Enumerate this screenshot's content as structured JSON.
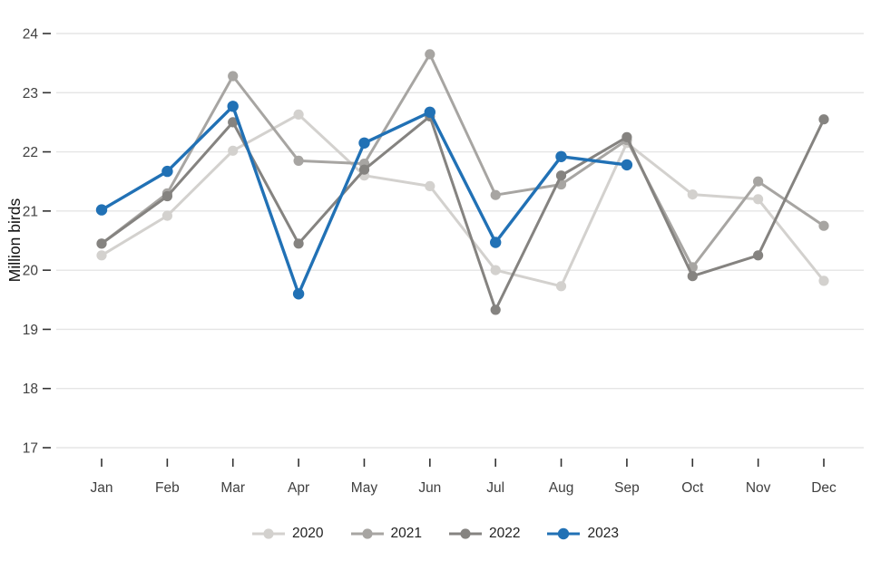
{
  "chart_data": {
    "type": "line",
    "title": "",
    "xlabel": "",
    "ylabel": "Million birds",
    "ylim": [
      17,
      24
    ],
    "yticks": [
      17,
      18,
      19,
      20,
      21,
      22,
      23,
      24
    ],
    "grid": "horizontal",
    "legend_position": "bottom",
    "categories": [
      "Jan",
      "Feb",
      "Mar",
      "Apr",
      "May",
      "Jun",
      "Jul",
      "Aug",
      "Sep",
      "Oct",
      "Nov",
      "Dec"
    ],
    "series": [
      {
        "name": "2020",
        "color": "#d3d1ce",
        "line_width": 3,
        "point_radius": 5.6,
        "values": [
          20.25,
          20.92,
          22.02,
          22.63,
          21.6,
          21.42,
          20.0,
          19.73,
          22.15,
          21.28,
          21.2,
          19.82
        ]
      },
      {
        "name": "2021",
        "color": "#a7a5a2",
        "line_width": 3,
        "point_radius": 5.6,
        "values": [
          20.45,
          21.3,
          23.28,
          21.85,
          21.8,
          23.65,
          21.27,
          21.45,
          22.2,
          20.05,
          21.5,
          20.75
        ]
      },
      {
        "name": "2022",
        "color": "#858380",
        "line_width": 3,
        "point_radius": 5.6,
        "values": [
          20.45,
          21.25,
          22.5,
          20.45,
          21.7,
          22.6,
          19.33,
          21.6,
          22.25,
          19.9,
          20.25,
          22.55
        ]
      },
      {
        "name": "2023",
        "color": "#2171b5",
        "line_width": 3.4,
        "point_radius": 6.2,
        "values": [
          21.02,
          21.67,
          22.77,
          19.6,
          22.15,
          22.67,
          20.47,
          21.92,
          21.78,
          null,
          null,
          null
        ]
      }
    ]
  }
}
